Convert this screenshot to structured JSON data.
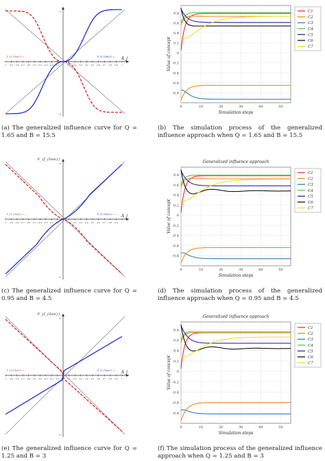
{
  "figure": {
    "panels": [
      {
        "id": "a",
        "caption": "(a) The generalized influence curve for Q = 1.65 and B = 15.5"
      },
      {
        "id": "b",
        "caption": "(b)  The simulation process of the generalized influence approach when Q = 1.65 and B = 15.5"
      },
      {
        "id": "c",
        "caption": "(c) The generalized influence curve for Q = 0.95 and B = 4.5"
      },
      {
        "id": "d",
        "caption": "(d) The simulation process of the generalized influence approach when Q = 0.95 and B = 4.5"
      },
      {
        "id": "e",
        "caption": "(e) The generalized influence curve for Q = 1.25 and B = 3"
      },
      {
        "id": "f",
        "caption": "(f) The simulation process of the generalized influence approach when Q = 1.25 and B = 3"
      }
    ],
    "influence_axis": {
      "y_label": "F_{f_{Gen}}",
      "x_label": "A_j",
      "inf_pos": "∞",
      "inf_neg": "-∞",
      "ticks": [
        "-1",
        "-0.9",
        "-0.8",
        "-0.7",
        "-0.6",
        "-0.5",
        "-0.4",
        "-0.3",
        "-0.2",
        "-0.1",
        "0.1",
        "0.2",
        "0.3",
        "0.4",
        "0.5",
        "0.6",
        "0.7",
        "0.8",
        "0.9",
        "1"
      ],
      "formula_red": "F_{f_{Gen}} = ...",
      "formula_blue": "F_{f_{Gen}} = ..."
    },
    "sim_common": {
      "ylabel": "Value of concept",
      "xlabel": "Simulation steps",
      "title": "Generalized influence approach",
      "yticks": [
        "0.8",
        "0.6",
        "0.4",
        "0.2",
        "0",
        "-0.2",
        "-0.4",
        "-0.6",
        "-0.8"
      ],
      "xticks": [
        "0",
        "10",
        "20",
        "30",
        "40",
        "50"
      ],
      "legend": [
        "C1",
        "C2",
        "C3",
        "C4",
        "C5",
        "C6",
        "C7"
      ]
    }
  },
  "colors": {
    "C1": "#e8312f",
    "C2": "#f08a24",
    "C3": "#2f7fc1",
    "C4": "#5cc93f",
    "C5": "#2a2aa8",
    "C6": "#111111",
    "C7": "#f2dd2a"
  },
  "chart_data": [
    {
      "type": "line",
      "panel": "a",
      "xlabel": "A_j",
      "ylabel": "F_{f_{Gen}}",
      "xlim": [
        -1,
        1
      ],
      "series": [
        {
          "values": "red dashed generalized influence curve"
        },
        {
          "values": "blue generalized influence curve"
        }
      ]
    },
    {
      "type": "line",
      "panel": "b",
      "xlabel": "Simulation steps",
      "ylabel": "Value of concept",
      "xlim": [
        0,
        55
      ],
      "ylim": [
        -1,
        0.95
      ],
      "series": [
        {
          "name": "C1",
          "final": 0.79
        },
        {
          "name": "C2",
          "final": 0.73
        },
        {
          "name": "C3",
          "final": -0.93
        },
        {
          "name": "C4",
          "final": 0.81
        },
        {
          "name": "C5",
          "final": 0.61
        },
        {
          "name": "C6",
          "final": 0.54
        },
        {
          "name": "C7",
          "final": 0.73
        },
        {
          "name": "C2",
          "final": -0.65
        }
      ]
    },
    {
      "type": "line",
      "panel": "d",
      "title": "Generalized influence approach",
      "xlabel": "Simulation steps",
      "ylabel": "Value of concept",
      "xlim": [
        0,
        55
      ],
      "ylim": [
        -1,
        0.95
      ],
      "series": [
        {
          "name": "C1",
          "final": 0.78
        },
        {
          "name": "C2",
          "final": 0.72
        },
        {
          "name": "C3",
          "final": -0.86
        },
        {
          "name": "C4",
          "final": 0.79
        },
        {
          "name": "C5",
          "final": 0.58
        },
        {
          "name": "C6",
          "final": 0.48
        },
        {
          "name": "C7",
          "final": 0.71
        },
        {
          "name": "C2",
          "final": -0.64
        }
      ]
    },
    {
      "type": "line",
      "panel": "f",
      "title": "Generalized influence approach",
      "xlabel": "Simulation steps",
      "ylabel": "Value of concept",
      "xlim": [
        0,
        55
      ],
      "ylim": [
        -1,
        0.95
      ],
      "series": [
        {
          "name": "C1",
          "final": 0.74
        },
        {
          "name": "C2",
          "final": 0.74
        },
        {
          "name": "C3",
          "final": -0.82
        },
        {
          "name": "C4",
          "final": 0.76
        },
        {
          "name": "C5",
          "final": 0.54
        },
        {
          "name": "C6",
          "final": 0.44
        },
        {
          "name": "C7",
          "final": 0.66
        },
        {
          "name": "C2",
          "final": -0.6
        }
      ]
    }
  ]
}
